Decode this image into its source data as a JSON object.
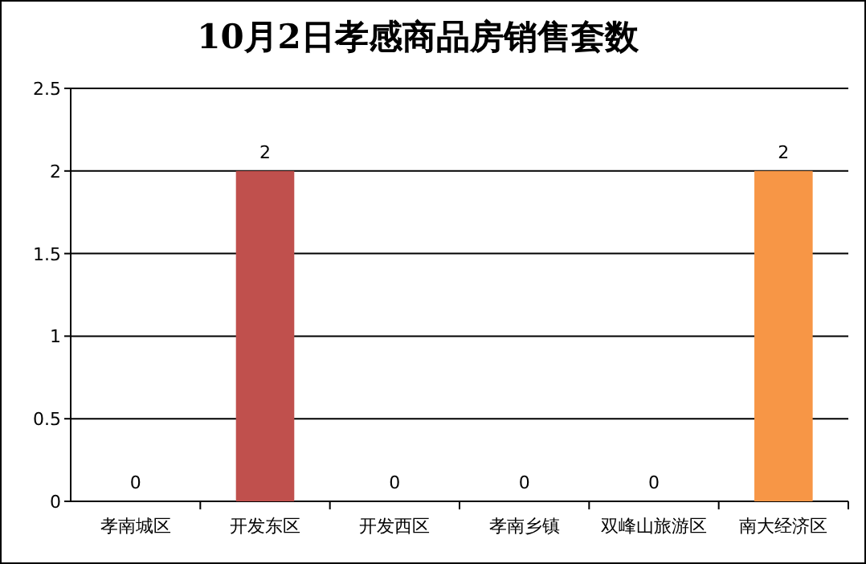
{
  "chart_data": {
    "type": "bar",
    "title": "10月2日孝感商品房销售套数",
    "categories": [
      "孝南城区",
      "开发东区",
      "开发西区",
      "孝南乡镇",
      "双峰山旅游区",
      "南大经济区"
    ],
    "values": [
      0,
      2,
      0,
      0,
      0,
      2
    ],
    "colors": [
      "#4f81bd",
      "#c0504d",
      "#9bbb59",
      "#8064a2",
      "#4bacc6",
      "#f79646"
    ],
    "ylim": [
      0,
      2.5
    ],
    "yticks": [
      0,
      0.5,
      1,
      1.5,
      2,
      2.5
    ],
    "grid": "y",
    "data_labels": true
  }
}
